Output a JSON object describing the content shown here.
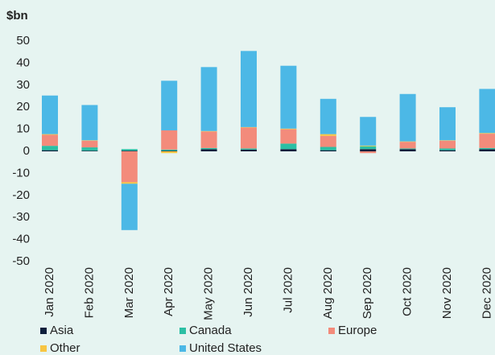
{
  "chart_data": {
    "type": "stacked_bar",
    "y_label": "$bn",
    "categories": [
      "Jan 2020",
      "Feb 2020",
      "Mar 2020",
      "Apr 2020",
      "May 2020",
      "Jun 2020",
      "Jul 2020",
      "Aug 2020",
      "Sep 2020",
      "Oct 2020",
      "Nov 2020",
      "Dec 2020"
    ],
    "series": [
      {
        "name": "Asia",
        "color": "#0d1f3c",
        "values": [
          0.5,
          0.3,
          0.3,
          0.3,
          1,
          0.8,
          1,
          0.5,
          1,
          1,
          0.5,
          1
        ]
      },
      {
        "name": "Canada",
        "color": "#2bbfa4",
        "values": [
          2,
          1.5,
          0.7,
          0.5,
          0.5,
          0.5,
          2.5,
          1.5,
          1.3,
          0.3,
          0.8,
          0.5
        ]
      },
      {
        "name": "Europe",
        "color": "#f38b7b",
        "values": [
          5,
          3,
          -14,
          8.7,
          7.5,
          9.5,
          6.5,
          5,
          -0.8,
          3,
          3.5,
          6.5
        ]
      },
      {
        "name": "Other",
        "color": "#f7c542",
        "values": [
          0.3,
          0.2,
          -0.7,
          -0.8,
          0.2,
          0.2,
          0.3,
          0.8,
          0.3,
          0.2,
          0.2,
          0.3
        ]
      },
      {
        "name": "United States",
        "color": "#4cb8e6",
        "values": [
          17.5,
          16,
          -21,
          22.5,
          29,
          34.5,
          28.5,
          16,
          13,
          21.5,
          15,
          20
        ]
      }
    ],
    "ylim": [
      -50,
      50
    ],
    "yticks": [
      -50,
      -40,
      -30,
      -20,
      -10,
      0,
      10,
      20,
      30,
      40,
      50
    ]
  }
}
